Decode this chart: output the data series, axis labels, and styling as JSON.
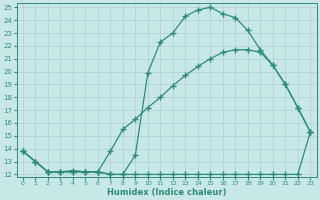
{
  "line1_x": [
    0,
    1,
    2,
    3,
    4,
    5,
    6,
    7,
    8,
    9,
    10,
    11,
    12,
    13,
    14,
    15,
    16,
    17,
    18,
    19,
    20,
    21,
    22,
    23
  ],
  "line1_y": [
    13.8,
    13.0,
    12.2,
    12.2,
    12.2,
    12.2,
    12.2,
    12.0,
    12.0,
    12.0,
    12.0,
    12.0,
    12.0,
    12.0,
    12.0,
    12.0,
    12.0,
    12.0,
    12.0,
    12.0,
    12.0,
    12.0,
    12.0,
    15.3
  ],
  "line2_x": [
    0,
    1,
    2,
    3,
    4,
    5,
    6,
    7,
    8,
    9,
    10,
    11,
    12,
    13,
    14,
    15,
    16,
    17,
    18,
    19,
    20,
    21,
    22,
    23
  ],
  "line2_y": [
    13.8,
    13.0,
    12.2,
    12.2,
    12.3,
    12.2,
    12.2,
    13.8,
    15.5,
    16.3,
    17.2,
    18.0,
    18.9,
    19.7,
    20.4,
    21.0,
    21.5,
    21.7,
    21.7,
    21.5,
    20.5,
    19.0,
    17.2,
    15.3
  ],
  "line3_x": [
    0,
    1,
    2,
    3,
    4,
    5,
    6,
    7,
    8,
    9,
    10,
    11,
    12,
    13,
    14,
    15,
    16,
    17,
    18,
    19,
    20,
    21,
    22,
    23
  ],
  "line3_y": [
    13.8,
    13.0,
    12.2,
    12.2,
    12.2,
    12.2,
    12.2,
    12.0,
    12.0,
    13.5,
    19.9,
    22.3,
    23.0,
    24.3,
    24.8,
    25.0,
    24.5,
    24.2,
    23.2,
    21.7,
    20.5,
    19.0,
    17.2,
    15.3
  ],
  "color": "#2e8b7a",
  "bg_color": "#c8e8e8",
  "grid_color": "#aacfcf",
  "xlabel": "Humidex (Indice chaleur)",
  "xlim_min": -0.5,
  "xlim_max": 23.5,
  "ylim_min": 11.8,
  "ylim_max": 25.3,
  "xticks": [
    0,
    1,
    2,
    3,
    4,
    5,
    6,
    7,
    8,
    9,
    10,
    11,
    12,
    13,
    14,
    15,
    16,
    17,
    18,
    19,
    20,
    21,
    22,
    23
  ],
  "yticks": [
    12,
    13,
    14,
    15,
    16,
    17,
    18,
    19,
    20,
    21,
    22,
    23,
    24,
    25
  ],
  "marker": "+",
  "markersize": 4,
  "linewidth": 0.9
}
